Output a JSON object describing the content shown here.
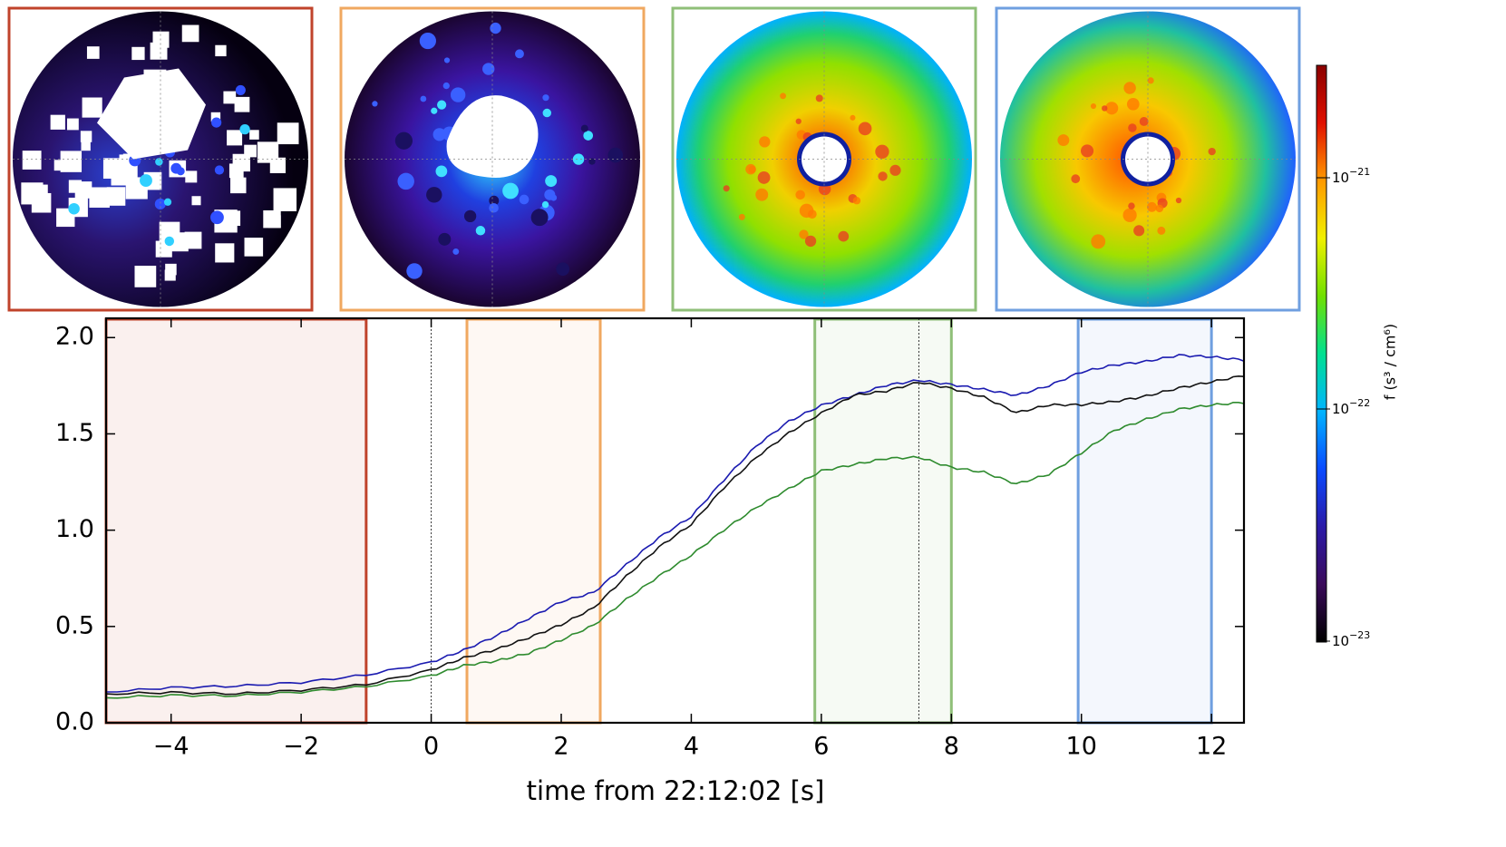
{
  "panels": [
    {
      "name": "panel-1",
      "color": "#c0432b",
      "style": "sparse"
    },
    {
      "name": "panel-2",
      "color": "#f0a860",
      "style": "ring"
    },
    {
      "name": "panel-3",
      "color": "#8fbf78",
      "style": "full"
    },
    {
      "name": "panel-4",
      "color": "#6f9fe0",
      "style": "full"
    }
  ],
  "colorbar": {
    "title": "f (s³ / cm⁶)",
    "ticks": [
      {
        "value": "1e-23",
        "base": "10",
        "exp": "−23"
      },
      {
        "value": "1e-22",
        "base": "10",
        "exp": "−22"
      },
      {
        "value": "1e-21",
        "base": "10",
        "exp": "−21"
      }
    ],
    "stops": [
      "#000000",
      "#3a0a5a",
      "#2b1aa8",
      "#0a4aff",
      "#00b4ff",
      "#00e090",
      "#70e000",
      "#f0f000",
      "#ff9a00",
      "#e01000",
      "#8a0000"
    ]
  },
  "chart_data": {
    "type": "line",
    "xlabel": "time from 22:12:02 [s]",
    "ylabel": "",
    "xlim": [
      -5,
      12.5
    ],
    "ylim": [
      0,
      2.1
    ],
    "x_ticks": [
      -4,
      -2,
      0,
      2,
      4,
      6,
      8,
      10,
      12
    ],
    "x_tick_labels": [
      "−4",
      "−2",
      "0",
      "2",
      "4",
      "6",
      "8",
      "10",
      "12"
    ],
    "y_ticks": [
      0.0,
      0.5,
      1.0,
      1.5,
      2.0
    ],
    "y_tick_labels": [
      "0.0",
      "0.5",
      "1.0",
      "1.5",
      "2.0"
    ],
    "vlines": [
      0,
      7.5
    ],
    "highlight_spans": [
      {
        "x0": -5,
        "x1": -1,
        "color": "#c0432b"
      },
      {
        "x0": 0.55,
        "x1": 2.6,
        "color": "#f0a860"
      },
      {
        "x0": 5.9,
        "x1": 8,
        "color": "#8fbf78"
      },
      {
        "x0": 9.95,
        "x1": 12,
        "color": "#6f9fe0"
      }
    ],
    "x": [
      -5,
      -4,
      -3,
      -2,
      -1,
      0,
      0.5,
      1,
      1.5,
      2,
      2.5,
      3,
      3.5,
      4,
      4.5,
      5,
      5.5,
      6,
      6.5,
      7,
      7.5,
      8,
      8.5,
      9,
      9.5,
      10,
      10.5,
      11,
      11.5,
      12,
      12.5
    ],
    "series": [
      {
        "name": "blue",
        "color": "#1a1ab0",
        "values": [
          0.16,
          0.18,
          0.2,
          0.21,
          0.25,
          0.32,
          0.37,
          0.45,
          0.54,
          0.62,
          0.68,
          0.82,
          0.96,
          1.08,
          1.26,
          1.44,
          1.57,
          1.64,
          1.7,
          1.75,
          1.77,
          1.76,
          1.73,
          1.7,
          1.76,
          1.82,
          1.86,
          1.88,
          1.9,
          1.9,
          1.88
        ]
      },
      {
        "name": "black",
        "color": "#111111",
        "values": [
          0.15,
          0.155,
          0.16,
          0.17,
          0.2,
          0.28,
          0.33,
          0.38,
          0.44,
          0.5,
          0.6,
          0.76,
          0.91,
          1.04,
          1.22,
          1.38,
          1.51,
          1.6,
          1.7,
          1.72,
          1.76,
          1.74,
          1.69,
          1.61,
          1.66,
          1.65,
          1.67,
          1.7,
          1.73,
          1.77,
          1.8
        ]
      },
      {
        "name": "green",
        "color": "#2e8b2e",
        "values": [
          0.13,
          0.14,
          0.15,
          0.16,
          0.19,
          0.25,
          0.29,
          0.32,
          0.36,
          0.42,
          0.51,
          0.64,
          0.76,
          0.88,
          1.0,
          1.12,
          1.22,
          1.3,
          1.34,
          1.37,
          1.37,
          1.33,
          1.3,
          1.24,
          1.3,
          1.4,
          1.52,
          1.58,
          1.62,
          1.65,
          1.66
        ]
      }
    ]
  }
}
